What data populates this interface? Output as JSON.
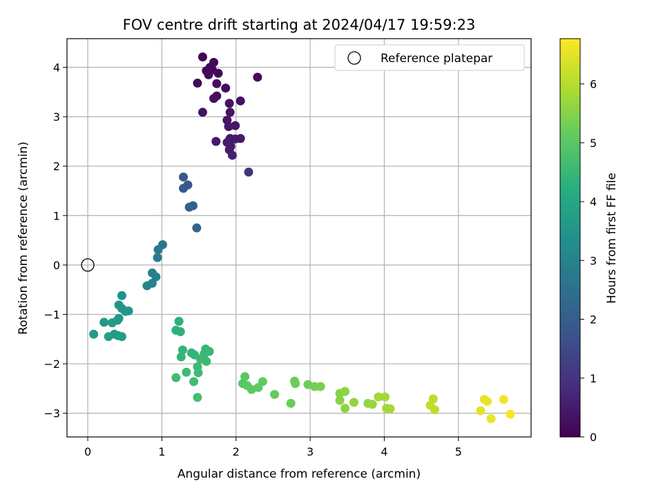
{
  "chart_data": {
    "type": "scatter",
    "title": "FOV centre drift starting at 2024/04/17 19:59:23",
    "xlabel": "Angular distance from reference (arcmin)",
    "ylabel": "Rotation from reference (arcmin)",
    "xlim": [
      -0.28,
      5.98
    ],
    "ylim": [
      -3.48,
      4.58
    ],
    "xticks": [
      0,
      1,
      2,
      3,
      4,
      5
    ],
    "yticks": [
      -3,
      -2,
      -1,
      0,
      1,
      2,
      3,
      4
    ],
    "grid": true,
    "legend": {
      "entries": [
        "Reference platepar"
      ],
      "placement": "upper right"
    },
    "reference_point": {
      "x": 0,
      "y": 0,
      "marker": "open circle"
    },
    "colorbar": {
      "label": "Hours from first FF file",
      "colormap": "viridis",
      "range": [
        0,
        6.77
      ],
      "ticks": [
        0,
        1,
        2,
        3,
        4,
        5,
        6
      ]
    },
    "points": [
      [
        1.55,
        4.21,
        0.05
      ],
      [
        1.7,
        4.1,
        0.08
      ],
      [
        1.65,
        4.0,
        0.1
      ],
      [
        1.6,
        3.93,
        0.12
      ],
      [
        1.68,
        3.95,
        0.13
      ],
      [
        1.76,
        3.88,
        0.15
      ],
      [
        1.63,
        3.85,
        0.16
      ],
      [
        2.29,
        3.8,
        0.18
      ],
      [
        1.48,
        3.68,
        0.2
      ],
      [
        1.74,
        3.67,
        0.22
      ],
      [
        1.86,
        3.58,
        0.24
      ],
      [
        1.74,
        3.42,
        0.26
      ],
      [
        1.7,
        3.37,
        0.28
      ],
      [
        2.06,
        3.32,
        0.3
      ],
      [
        1.91,
        3.27,
        0.32
      ],
      [
        1.55,
        3.09,
        0.34
      ],
      [
        1.92,
        3.09,
        0.36
      ],
      [
        1.88,
        2.93,
        0.38
      ],
      [
        1.99,
        2.82,
        0.4
      ],
      [
        1.9,
        2.8,
        0.42
      ],
      [
        1.92,
        2.56,
        0.44
      ],
      [
        2.06,
        2.56,
        0.46
      ],
      [
        1.99,
        2.55,
        0.48
      ],
      [
        1.73,
        2.5,
        0.5
      ],
      [
        1.88,
        2.48,
        0.52
      ],
      [
        1.93,
        2.4,
        0.54
      ],
      [
        1.91,
        2.33,
        0.56
      ],
      [
        1.95,
        2.22,
        0.58
      ],
      [
        2.17,
        1.88,
        0.95
      ],
      [
        1.29,
        1.78,
        1.85
      ],
      [
        1.35,
        1.62,
        1.88
      ],
      [
        1.29,
        1.55,
        1.9
      ],
      [
        1.42,
        1.2,
        2.0
      ],
      [
        1.37,
        1.17,
        2.05
      ],
      [
        1.47,
        0.75,
        2.2
      ],
      [
        1.01,
        0.41,
        2.65
      ],
      [
        0.95,
        0.31,
        2.7
      ],
      [
        0.94,
        0.15,
        2.75
      ],
      [
        0.87,
        -0.16,
        2.9
      ],
      [
        0.92,
        -0.24,
        2.95
      ],
      [
        0.87,
        -0.37,
        3.0
      ],
      [
        0.8,
        -0.42,
        3.05
      ],
      [
        0.46,
        -0.62,
        3.4
      ],
      [
        0.42,
        -0.81,
        3.45
      ],
      [
        0.46,
        -0.88,
        3.48
      ],
      [
        0.51,
        -0.94,
        3.5
      ],
      [
        0.55,
        -0.93,
        3.52
      ],
      [
        0.42,
        -1.08,
        3.55
      ],
      [
        0.4,
        -1.12,
        3.57
      ],
      [
        0.22,
        -1.16,
        3.6
      ],
      [
        0.33,
        -1.17,
        3.62
      ],
      [
        0.08,
        -1.4,
        3.7
      ],
      [
        0.36,
        -1.4,
        3.72
      ],
      [
        0.41,
        -1.43,
        3.74
      ],
      [
        0.46,
        -1.45,
        3.76
      ],
      [
        0.28,
        -1.45,
        3.78
      ],
      [
        1.23,
        -1.14,
        4.3
      ],
      [
        1.19,
        -1.32,
        4.32
      ],
      [
        1.25,
        -1.35,
        4.34
      ],
      [
        1.4,
        -1.78,
        4.4
      ],
      [
        1.44,
        -1.82,
        4.42
      ],
      [
        1.28,
        -1.72,
        4.44
      ],
      [
        1.26,
        -1.86,
        4.46
      ],
      [
        1.59,
        -1.7,
        4.48
      ],
      [
        1.64,
        -1.75,
        4.5
      ],
      [
        1.57,
        -1.8,
        4.52
      ],
      [
        1.52,
        -1.9,
        4.54
      ],
      [
        1.6,
        -1.95,
        4.56
      ],
      [
        1.48,
        -2.06,
        4.58
      ],
      [
        1.49,
        -2.18,
        4.6
      ],
      [
        1.33,
        -2.17,
        4.62
      ],
      [
        1.19,
        -2.28,
        4.64
      ],
      [
        1.43,
        -2.36,
        4.66
      ],
      [
        1.48,
        -2.68,
        4.7
      ],
      [
        2.12,
        -2.26,
        5.0
      ],
      [
        2.09,
        -2.4,
        5.02
      ],
      [
        2.15,
        -2.44,
        5.04
      ],
      [
        2.21,
        -2.52,
        5.06
      ],
      [
        2.3,
        -2.48,
        5.08
      ],
      [
        2.36,
        -2.36,
        5.1
      ],
      [
        2.52,
        -2.62,
        5.14
      ],
      [
        2.74,
        -2.8,
        5.18
      ],
      [
        2.79,
        -2.35,
        5.2
      ],
      [
        2.8,
        -2.4,
        5.22
      ],
      [
        2.97,
        -2.42,
        5.26
      ],
      [
        3.06,
        -2.46,
        5.3
      ],
      [
        3.14,
        -2.46,
        5.34
      ],
      [
        3.4,
        -2.6,
        5.5
      ],
      [
        3.4,
        -2.74,
        5.52
      ],
      [
        3.47,
        -2.56,
        5.56
      ],
      [
        3.47,
        -2.9,
        5.58
      ],
      [
        3.59,
        -2.78,
        5.62
      ],
      [
        3.78,
        -2.8,
        5.66
      ],
      [
        3.84,
        -2.82,
        5.7
      ],
      [
        3.92,
        -2.67,
        5.78
      ],
      [
        4.01,
        -2.67,
        5.8
      ],
      [
        4.03,
        -2.9,
        5.82
      ],
      [
        4.08,
        -2.91,
        5.84
      ],
      [
        4.66,
        -2.71,
        6.05
      ],
      [
        4.62,
        -2.84,
        6.08
      ],
      [
        4.68,
        -2.93,
        6.1
      ],
      [
        5.3,
        -2.95,
        6.5
      ],
      [
        5.35,
        -2.72,
        6.52
      ],
      [
        5.39,
        -2.76,
        6.55
      ],
      [
        5.44,
        -3.11,
        6.58
      ],
      [
        5.61,
        -2.72,
        6.65
      ],
      [
        5.7,
        -3.02,
        6.7
      ]
    ]
  }
}
